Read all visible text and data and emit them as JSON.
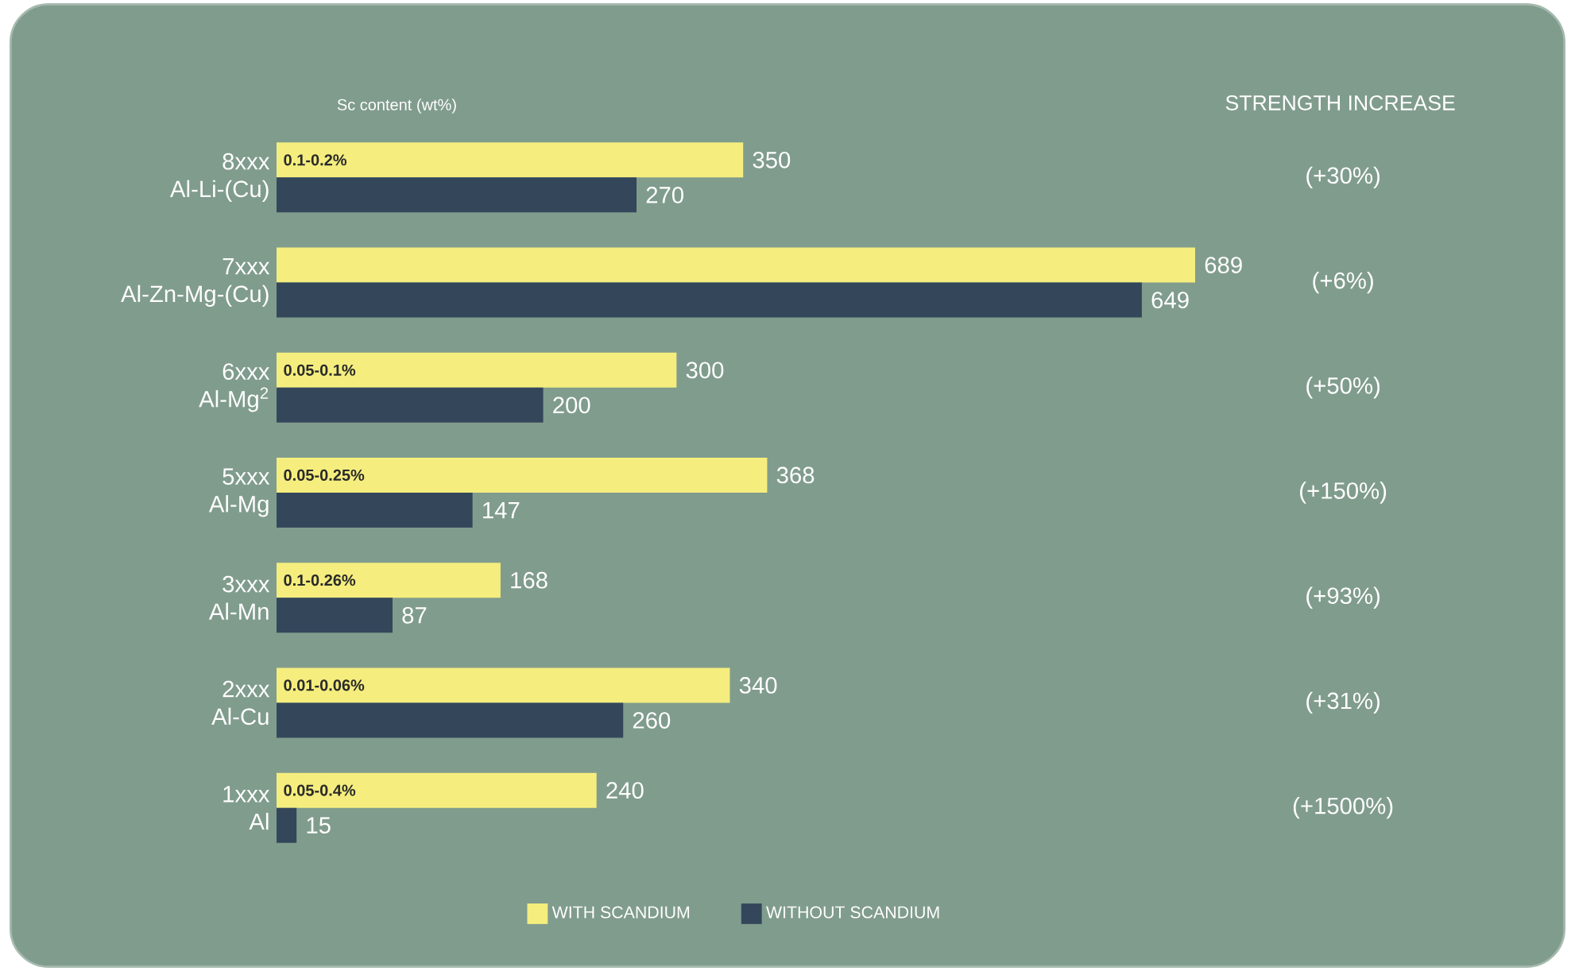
{
  "chart_data": {
    "type": "bar",
    "orientation": "horizontal",
    "categories": [
      "8xxx Al-Li-(Cu)",
      "7xxx Al-Zn-Mg-(Cu)",
      "6xxx Al-Mg$^{2}$",
      "5xxx Al-Mg",
      "3xxx Al-Mn",
      "2xxx Al-Cu",
      "1xxx Al"
    ],
    "series": [
      {
        "name": "WITH SCANDIUM",
        "color": "#f5ee7e",
        "values": [
          350,
          689,
          300,
          368,
          168,
          340,
          240
        ]
      },
      {
        "name": "WITHOUT SCANDIUM",
        "color": "#34475a",
        "values": [
          270,
          649,
          200,
          147,
          87,
          260,
          15
        ]
      }
    ],
    "tick_labels": "y",
    "data_labels": true,
    "legend": "bottom",
    "annotations": [
      "Sc content (wt%)",
      "STRENGTH INCREASE",
      {
        "text": "0.1-0.2%",
        "y": "8xxx Al-Li-(Cu)"
      },
      {
        "text": "0.05-0.1%",
        "y": "6xxx Al-Mg$^{2}$"
      },
      {
        "text": "0.05-0.25%",
        "y": "5xxx Al-Mg"
      },
      {
        "text": "0.1-0.26%",
        "y": "3xxx Al-Mn"
      },
      {
        "text": "0.01-0.06%",
        "y": "2xxx Al-Cu"
      },
      {
        "text": "0.05-0.4%",
        "y": "1xxx Al"
      },
      "(+30%)",
      "(+6%)",
      "(+50%)",
      "(+150%)",
      "(+93%)",
      "(+31%)",
      "(+1500%)"
    ]
  }
}
